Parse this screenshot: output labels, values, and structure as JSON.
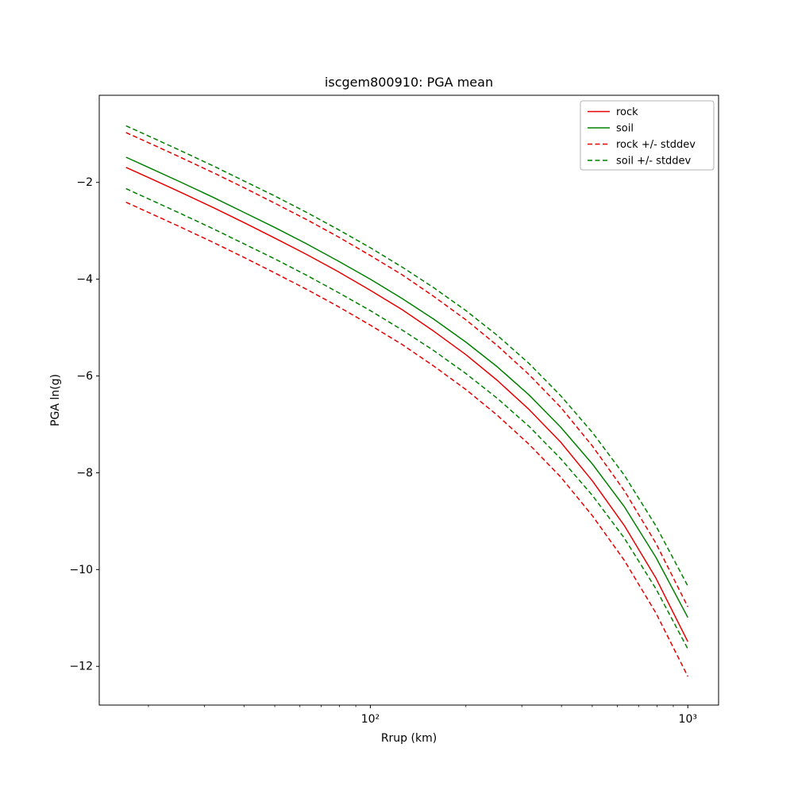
{
  "chart_data": {
    "type": "line",
    "title": "iscgem800910: PGA mean",
    "xlabel": "Rrup (km)",
    "ylabel": "PGA ln(g)",
    "x_scale": "log",
    "grid": false,
    "xlim": [
      14,
      1250
    ],
    "ylim": [
      -12.8,
      -0.2
    ],
    "x_ticks": [
      {
        "value": 100,
        "label": "10²"
      },
      {
        "value": 1000,
        "label": "10³"
      }
    ],
    "x_minor_ticks": [
      20,
      30,
      40,
      50,
      60,
      70,
      80,
      90,
      200,
      300,
      400,
      500,
      600,
      700,
      800,
      900
    ],
    "y_ticks": [
      {
        "value": -2,
        "label": "−2"
      },
      {
        "value": -4,
        "label": "−4"
      },
      {
        "value": -6,
        "label": "−6"
      },
      {
        "value": -8,
        "label": "−8"
      },
      {
        "value": -10,
        "label": "−10"
      },
      {
        "value": -12,
        "label": "−12"
      }
    ],
    "colors": {
      "rock": "#e60000",
      "soil": "#008000"
    },
    "x": [
      17,
      20,
      25,
      32,
      40,
      50,
      63,
      79,
      100,
      126,
      158,
      200,
      251,
      316,
      398,
      501,
      631,
      794,
      1000
    ],
    "series": [
      {
        "id": "rock",
        "name": "rock",
        "color": "#e60000",
        "dash": false,
        "values": [
          -1.69,
          -1.9,
          -2.19,
          -2.52,
          -2.83,
          -3.15,
          -3.49,
          -3.84,
          -4.23,
          -4.63,
          -5.07,
          -5.56,
          -6.09,
          -6.69,
          -7.37,
          -8.17,
          -9.09,
          -10.18,
          -11.49
        ]
      },
      {
        "id": "soil",
        "name": "soil",
        "color": "#008000",
        "dash": false,
        "values": [
          -1.48,
          -1.69,
          -1.98,
          -2.31,
          -2.62,
          -2.93,
          -3.27,
          -3.62,
          -4.0,
          -4.4,
          -4.82,
          -5.3,
          -5.81,
          -6.39,
          -7.06,
          -7.82,
          -8.7,
          -9.75,
          -10.99
        ]
      },
      {
        "id": "rock-plus-stddev",
        "name": "rock + stddev",
        "color": "#e60000",
        "dash": true,
        "values": [
          -0.97,
          -1.18,
          -1.47,
          -1.8,
          -2.11,
          -2.43,
          -2.77,
          -3.12,
          -3.51,
          -3.91,
          -4.35,
          -4.84,
          -5.37,
          -5.97,
          -6.65,
          -7.45,
          -8.37,
          -9.46,
          -10.77
        ]
      },
      {
        "id": "rock-minus-stddev",
        "name": "rock - stddev",
        "color": "#e60000",
        "dash": true,
        "values": [
          -2.41,
          -2.62,
          -2.91,
          -3.24,
          -3.55,
          -3.87,
          -4.21,
          -4.56,
          -4.95,
          -5.35,
          -5.79,
          -6.28,
          -6.81,
          -7.41,
          -8.09,
          -8.89,
          -9.81,
          -10.9,
          -12.21
        ]
      },
      {
        "id": "soil-plus-stddev",
        "name": "soil + stddev",
        "color": "#008000",
        "dash": true,
        "values": [
          -0.83,
          -1.04,
          -1.33,
          -1.66,
          -1.97,
          -2.28,
          -2.62,
          -2.97,
          -3.35,
          -3.75,
          -4.17,
          -4.65,
          -5.16,
          -5.74,
          -6.41,
          -7.17,
          -8.05,
          -9.1,
          -10.34
        ]
      },
      {
        "id": "soil-minus-stddev",
        "name": "soil - stddev",
        "color": "#008000",
        "dash": true,
        "values": [
          -2.13,
          -2.34,
          -2.63,
          -2.96,
          -3.27,
          -3.58,
          -3.92,
          -4.27,
          -4.65,
          -5.05,
          -5.47,
          -5.95,
          -6.46,
          -7.04,
          -7.71,
          -8.47,
          -9.35,
          -10.4,
          -11.64
        ]
      }
    ],
    "legend": {
      "position": "upper right",
      "entries": [
        {
          "label": "rock",
          "color": "#e60000",
          "dash": false
        },
        {
          "label": "soil",
          "color": "#008000",
          "dash": false
        },
        {
          "label": "rock +/- stddev",
          "color": "#e60000",
          "dash": true
        },
        {
          "label": "soil +/- stddev",
          "color": "#008000",
          "dash": true
        }
      ]
    }
  }
}
